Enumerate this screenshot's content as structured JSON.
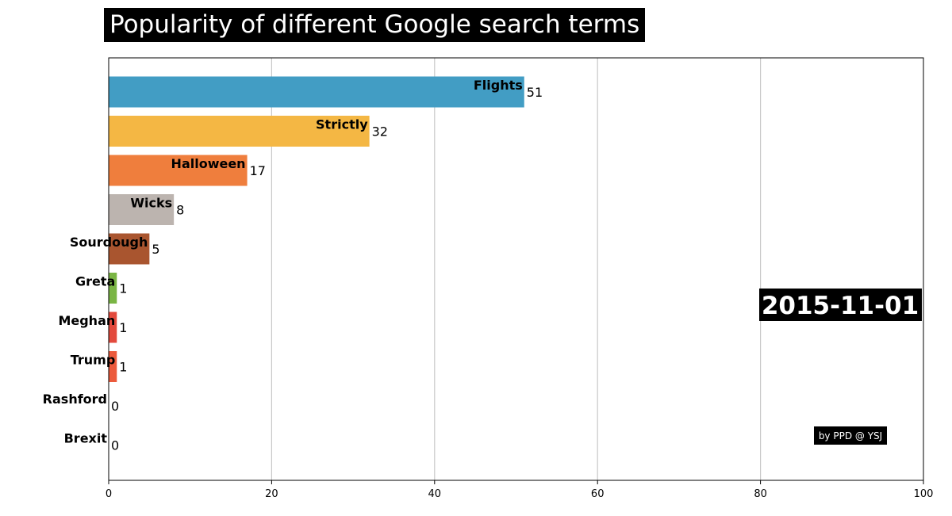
{
  "title": "Popularity of different Google search terms",
  "date_label": "2015-11-01",
  "credit": "by PPD @ YSJ",
  "chart_data": {
    "type": "bar",
    "orientation": "horizontal",
    "title": "Popularity of different Google search terms",
    "categories": [
      "Flights",
      "Strictly",
      "Halloween",
      "Wicks",
      "Sourdough",
      "Greta",
      "Meghan",
      "Trump",
      "Rashford",
      "Brexit"
    ],
    "values": [
      51,
      32,
      17,
      8,
      5,
      1,
      1,
      1,
      0,
      0
    ],
    "colors": [
      "#429dc4",
      "#f4b744",
      "#ef7e3d",
      "#bcb4af",
      "#a9552f",
      "#7ab544",
      "#e34a3d",
      "#ec5a3c",
      "#ef7e3d",
      "#429dc4"
    ],
    "xlim": [
      0,
      100
    ],
    "xticks": [
      0,
      20,
      40,
      60,
      80,
      100
    ],
    "grid": "vertical",
    "xlabel": "",
    "ylabel": ""
  }
}
